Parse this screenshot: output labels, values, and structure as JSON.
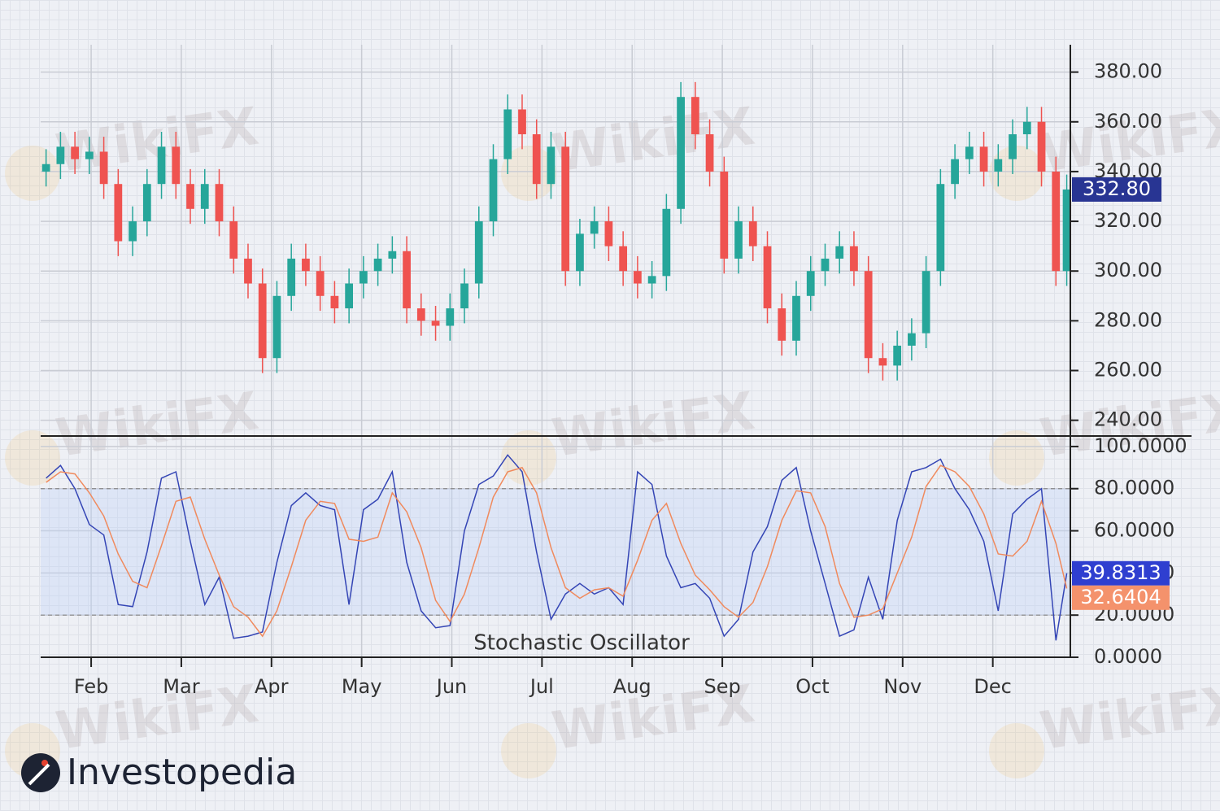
{
  "chart_data": [
    {
      "type": "candlestick",
      "x": [
        0.5,
        0.66,
        0.82,
        0.98,
        1.14,
        1.3,
        1.46,
        1.62,
        1.78,
        1.94,
        2.1,
        2.26,
        2.42,
        2.58,
        2.74,
        2.9,
        3.06,
        3.22,
        3.38,
        3.54,
        3.7,
        3.86,
        4.02,
        4.18,
        4.34,
        4.5,
        4.66,
        4.82,
        4.98,
        5.14,
        5.3,
        5.46,
        5.62,
        5.78,
        5.94,
        6.1,
        6.26,
        6.42,
        6.58,
        6.74,
        6.9,
        7.06,
        7.22,
        7.38,
        7.54,
        7.7,
        7.86,
        8.02,
        8.18,
        8.34,
        8.5,
        8.66,
        8.82,
        8.98,
        9.14,
        9.3,
        9.46,
        9.62,
        9.78,
        9.94,
        10.1,
        10.26,
        10.42,
        10.58,
        10.74,
        10.9,
        11.06,
        11.22,
        11.38,
        11.54,
        11.7,
        11.82
      ],
      "open": [
        340,
        343,
        350,
        345,
        348,
        335,
        312,
        320,
        335,
        350,
        335,
        325,
        335,
        320,
        305,
        295,
        265,
        290,
        305,
        300,
        290,
        285,
        295,
        300,
        305,
        308,
        285,
        280,
        278,
        285,
        295,
        320,
        345,
        365,
        355,
        335,
        350,
        300,
        315,
        320,
        310,
        300,
        295,
        298,
        325,
        370,
        355,
        340,
        305,
        320,
        310,
        285,
        272,
        290,
        300,
        305,
        310,
        300,
        265,
        262,
        270,
        275,
        300,
        335,
        345,
        350,
        340,
        345,
        355,
        360,
        340,
        300
      ],
      "high": [
        349,
        356,
        356,
        354,
        354,
        341,
        326,
        341,
        356,
        356,
        341,
        341,
        341,
        326,
        311,
        301,
        296,
        311,
        311,
        306,
        296,
        301,
        306,
        311,
        314,
        314,
        291,
        286,
        291,
        301,
        326,
        351,
        371,
        371,
        361,
        356,
        356,
        321,
        326,
        326,
        316,
        306,
        304,
        331,
        376,
        376,
        361,
        346,
        326,
        326,
        316,
        291,
        296,
        306,
        311,
        316,
        316,
        306,
        271,
        276,
        281,
        306,
        341,
        351,
        356,
        356,
        351,
        361,
        366,
        366,
        346,
        338.8
      ],
      "low": [
        334,
        337,
        339,
        339,
        329,
        306,
        306,
        314,
        329,
        329,
        319,
        319,
        314,
        299,
        289,
        259,
        259,
        284,
        294,
        284,
        279,
        279,
        289,
        294,
        299,
        279,
        274,
        272,
        272,
        279,
        289,
        314,
        339,
        349,
        329,
        329,
        294,
        294,
        309,
        304,
        294,
        289,
        289,
        292,
        319,
        349,
        334,
        299,
        299,
        304,
        279,
        266,
        266,
        284,
        294,
        299,
        294,
        259,
        256,
        256,
        264,
        269,
        294,
        329,
        339,
        334,
        334,
        339,
        349,
        334,
        294,
        294
      ],
      "close": [
        343,
        350,
        345,
        348,
        335,
        312,
        320,
        335,
        350,
        335,
        325,
        335,
        320,
        305,
        295,
        265,
        290,
        305,
        300,
        290,
        285,
        295,
        300,
        305,
        308,
        285,
        280,
        278,
        285,
        295,
        320,
        345,
        365,
        355,
        335,
        350,
        300,
        315,
        320,
        310,
        300,
        295,
        298,
        325,
        370,
        355,
        340,
        305,
        320,
        310,
        285,
        272,
        290,
        300,
        305,
        310,
        300,
        265,
        262,
        270,
        275,
        300,
        335,
        345,
        350,
        340,
        345,
        355,
        360,
        340,
        300,
        332.8
      ],
      "last_value_label": "332.80",
      "up_color": "#26a69a",
      "down_color": "#ef5350",
      "label_color": "#283593",
      "ylim": [
        234,
        391
      ],
      "yticks": [
        {
          "value": 240,
          "label": "240.00"
        },
        {
          "value": 260,
          "label": "260.00"
        },
        {
          "value": 280,
          "label": "280.00"
        },
        {
          "value": 300,
          "label": "300.00"
        },
        {
          "value": 320,
          "label": "320.00"
        },
        {
          "value": 340,
          "label": "340.00"
        },
        {
          "value": 360,
          "label": "360.00"
        },
        {
          "value": 380,
          "label": "380.00"
        }
      ],
      "grid": true
    },
    {
      "type": "line",
      "title": "Stochastic Oscillator",
      "x": [
        0.5,
        0.66,
        0.82,
        0.98,
        1.14,
        1.3,
        1.46,
        1.62,
        1.78,
        1.94,
        2.1,
        2.26,
        2.42,
        2.58,
        2.74,
        2.9,
        3.06,
        3.22,
        3.38,
        3.54,
        3.7,
        3.86,
        4.02,
        4.18,
        4.34,
        4.5,
        4.66,
        4.82,
        4.98,
        5.14,
        5.3,
        5.46,
        5.62,
        5.78,
        5.94,
        6.1,
        6.26,
        6.42,
        6.58,
        6.74,
        6.9,
        7.06,
        7.22,
        7.38,
        7.54,
        7.7,
        7.86,
        8.02,
        8.18,
        8.34,
        8.5,
        8.66,
        8.82,
        8.98,
        9.14,
        9.3,
        9.46,
        9.62,
        9.78,
        9.94,
        10.1,
        10.26,
        10.42,
        10.58,
        10.74,
        10.9,
        11.06,
        11.22,
        11.38,
        11.54,
        11.7,
        11.82
      ],
      "series": [
        {
          "color": "#3445b5",
          "label_color": "#2f3fd0",
          "last_label": "39.8313",
          "values": [
            85,
            91,
            80,
            63,
            58,
            25,
            24,
            50,
            85,
            88,
            55,
            25,
            38,
            9,
            10,
            12,
            45,
            72,
            78,
            72,
            70,
            25,
            70,
            75,
            88,
            45,
            22,
            14,
            15,
            60,
            82,
            86,
            96,
            88,
            50,
            18,
            30,
            35,
            30,
            33,
            25,
            88,
            82,
            48,
            33,
            35,
            28,
            10,
            18,
            50,
            62,
            84,
            90,
            60,
            35,
            10,
            13,
            38,
            18,
            65,
            88,
            90,
            94,
            80,
            70,
            55,
            22,
            68,
            75,
            80,
            8,
            39.8313
          ]
        },
        {
          "color": "#f08a5d",
          "label_color": "#f4926c",
          "last_label": "32.6404",
          "values": [
            83,
            88,
            87,
            78,
            67,
            49,
            36,
            33,
            53,
            74,
            76,
            56,
            39,
            24,
            19,
            10,
            22,
            43,
            65,
            74,
            73,
            56,
            55,
            57,
            78,
            69,
            52,
            27,
            17,
            30,
            52,
            76,
            88,
            90,
            78,
            52,
            33,
            28,
            32,
            33,
            29,
            46,
            65,
            73,
            54,
            39,
            32,
            24,
            19,
            26,
            43,
            65,
            79,
            78,
            62,
            35,
            19,
            20,
            23,
            40,
            57,
            81,
            91,
            88,
            81,
            68,
            49,
            48,
            55,
            74,
            54,
            32.6404
          ]
        }
      ],
      "levels": [
        20,
        80
      ],
      "xlim": [
        0.44,
        11.86
      ],
      "xticks": [
        {
          "value": 1,
          "label": "Feb"
        },
        {
          "value": 2,
          "label": "Mar"
        },
        {
          "value": 3,
          "label": "Apr"
        },
        {
          "value": 4,
          "label": "May"
        },
        {
          "value": 5,
          "label": "Jun"
        },
        {
          "value": 6,
          "label": "Jul"
        },
        {
          "value": 7,
          "label": "Aug"
        },
        {
          "value": 8,
          "label": "Sep"
        },
        {
          "value": 9,
          "label": "Oct"
        },
        {
          "value": 10,
          "label": "Nov"
        },
        {
          "value": 11,
          "label": "Dec"
        }
      ],
      "ylim": [
        0,
        104.6
      ],
      "yticks": [
        {
          "value": 0,
          "label": "0.0000"
        },
        {
          "value": 20,
          "label": "20.0000"
        },
        {
          "value": 40,
          "label": "40.0000"
        },
        {
          "value": 60,
          "label": "60.0000"
        },
        {
          "value": 80,
          "label": "80.0000"
        },
        {
          "value": 100,
          "label": "100.0000"
        }
      ],
      "grid": true
    }
  ],
  "watermark": "WikiFX",
  "brand": "Investopedia"
}
